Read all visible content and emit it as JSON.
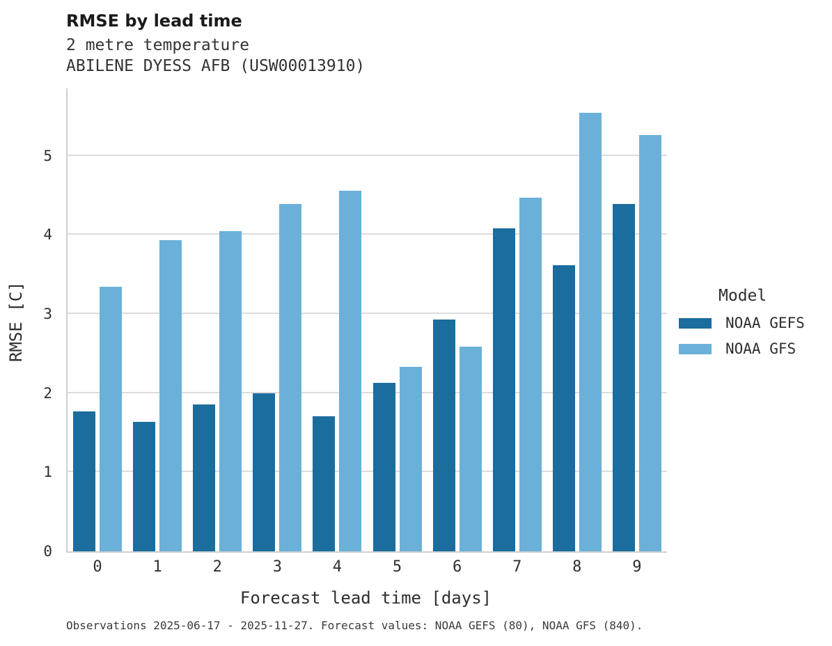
{
  "header": {
    "title": "RMSE by lead time",
    "subtitle_variable": "2 metre temperature",
    "subtitle_station": "ABILENE DYESS AFB (USW00013910)"
  },
  "chart_data": {
    "type": "bar",
    "title": "RMSE by lead time",
    "subtitle": [
      "2 metre temperature",
      "ABILENE DYESS AFB (USW00013910)"
    ],
    "xlabel": "Forecast lead time [days]",
    "ylabel": "RMSE [C]",
    "categories": [
      "0",
      "1",
      "2",
      "3",
      "4",
      "5",
      "6",
      "7",
      "8",
      "9"
    ],
    "series": [
      {
        "name": "NOAA GEFS",
        "color": "#1b6d9e",
        "values": [
          1.77,
          1.64,
          1.86,
          2.0,
          1.71,
          2.13,
          2.93,
          4.08,
          3.62,
          4.39
        ]
      },
      {
        "name": "NOAA GFS",
        "color": "#6bb0d9",
        "values": [
          3.34,
          3.93,
          4.05,
          4.39,
          4.56,
          2.33,
          2.59,
          4.47,
          5.54,
          5.26
        ]
      }
    ],
    "ylim": [
      0,
      5.85
    ],
    "yticks": [
      0,
      1,
      2,
      3,
      4,
      5
    ],
    "grid": "horizontal",
    "legend_position": "right-center"
  },
  "legend": {
    "title": "Model",
    "items": [
      {
        "label": "NOAA GEFS",
        "color": "#1b6d9e"
      },
      {
        "label": "NOAA GFS",
        "color": "#6bb0d9"
      }
    ]
  },
  "caption": "Observations 2025-06-17 - 2025-11-27. Forecast values: NOAA GEFS (80), NOAA GFS (840)."
}
